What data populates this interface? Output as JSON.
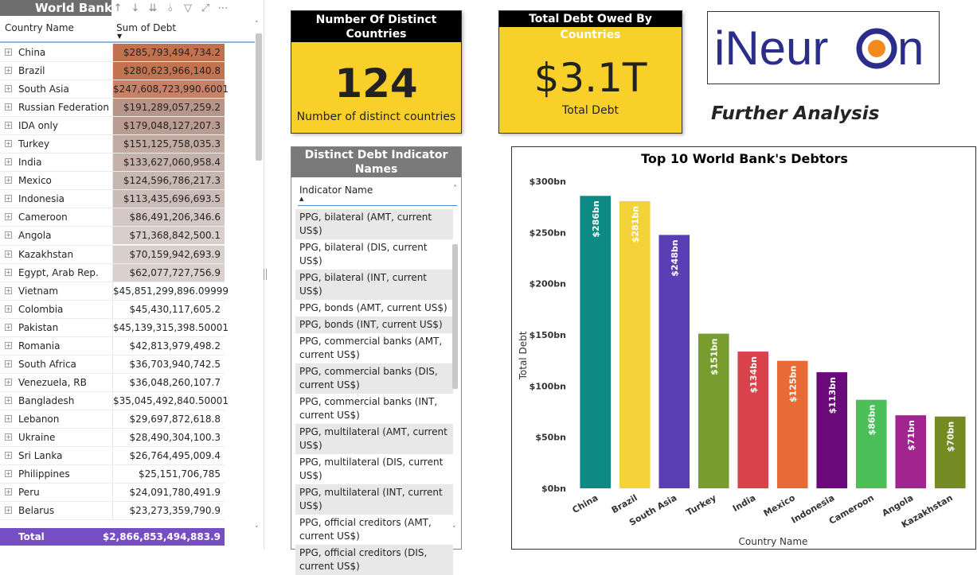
{
  "matrix": {
    "title": "World Bank",
    "toolbar_icons": [
      "sort-up-icon",
      "sort-down-icon",
      "expand-all-icon",
      "drill-icon",
      "filter-icon",
      "focus-icon",
      "more-icon"
    ],
    "header_country": "Country Name",
    "header_debt": "Sum of Debt",
    "rows": [
      {
        "name": "China",
        "value": "$285,793,494,734.2",
        "color": "#c2714f"
      },
      {
        "name": "Brazil",
        "value": "$280,623,966,140.8",
        "color": "#c3734f"
      },
      {
        "name": "South Asia",
        "value": "$247,608,723,990.6001",
        "color": "#c68166"
      },
      {
        "name": "Russian Federation",
        "value": "$191,289,057,259.2",
        "color": "#b8958a"
      },
      {
        "name": "IDA only",
        "value": "$179,048,127,207.3",
        "color": "#b99c92"
      },
      {
        "name": "Turkey",
        "value": "$151,125,758,035.3",
        "color": "#c0aaa2"
      },
      {
        "name": "India",
        "value": "$133,627,060,958.4",
        "color": "#c3b1aa"
      },
      {
        "name": "Mexico",
        "value": "$124,596,786,217.3",
        "color": "#c7b7b1"
      },
      {
        "name": "Indonesia",
        "value": "$113,435,696,693.5",
        "color": "#cbbcb7"
      },
      {
        "name": "Cameroon",
        "value": "$86,491,206,346.6",
        "color": "#d4c8c4"
      },
      {
        "name": "Angola",
        "value": "$71,368,842,500.1",
        "color": "#d8ceca"
      },
      {
        "name": "Kazakhstan",
        "value": "$70,159,942,693.9",
        "color": "#d9cfcb"
      },
      {
        "name": "Egypt, Arab Rep.",
        "value": "$62,077,727,756.9",
        "color": "#dad1ce"
      },
      {
        "name": "Vietnam",
        "value": "$45,851,299,896.09999",
        "color": "#ffffff"
      },
      {
        "name": "Colombia",
        "value": "$45,430,117,605.2",
        "color": "#ffffff"
      },
      {
        "name": "Pakistan",
        "value": "$45,139,315,398.50001",
        "color": "#ffffff"
      },
      {
        "name": "Romania",
        "value": "$42,813,979,498.2",
        "color": "#ffffff"
      },
      {
        "name": "South Africa",
        "value": "$36,703,940,742.5",
        "color": "#ffffff"
      },
      {
        "name": "Venezuela, RB",
        "value": "$36,048,260,107.7",
        "color": "#ffffff"
      },
      {
        "name": "Bangladesh",
        "value": "$35,045,492,840.50001",
        "color": "#ffffff"
      },
      {
        "name": "Lebanon",
        "value": "$29,697,872,618.8",
        "color": "#ffffff"
      },
      {
        "name": "Ukraine",
        "value": "$28,490,304,100.3",
        "color": "#ffffff"
      },
      {
        "name": "Sri Lanka",
        "value": "$26,764,495,009.4",
        "color": "#ffffff"
      },
      {
        "name": "Philippines",
        "value": "$25,151,706,785",
        "color": "#ffffff"
      },
      {
        "name": "Peru",
        "value": "$24,091,780,491.9",
        "color": "#ffffff"
      },
      {
        "name": "Belarus",
        "value": "$23,273,359,790.9",
        "color": "#ffffff"
      }
    ],
    "total_label": "Total",
    "total_value": "$2,866,853,494,883.9"
  },
  "card_countries": {
    "title": "Number Of Distinct Countries",
    "value": "124",
    "subtitle": "Number of distinct countries"
  },
  "card_debt": {
    "title": "Total Debt Owed By Countries",
    "value": "$3.1T",
    "subtitle": "Total Debt"
  },
  "logo": {
    "text": "iNeuron"
  },
  "further_analysis": "Further Analysis",
  "slicer": {
    "title": "Distinct Debt Indicator Names",
    "header": "Indicator Name",
    "items": [
      "PPG, bilateral (AMT, current US$)",
      "PPG, bilateral (DIS, current US$)",
      "PPG, bilateral (INT, current US$)",
      "PPG, bonds (AMT, current US$)",
      "PPG, bonds (INT, current US$)",
      "PPG, commercial banks (AMT, current US$)",
      "PPG, commercial banks (DIS, current US$)",
      "PPG, commercial banks (INT, current US$)",
      "PPG, multilateral (AMT, current US$)",
      "PPG, multilateral (DIS, current US$)",
      "PPG, multilateral (INT, current US$)",
      "PPG, official creditors (AMT, current US$)",
      "PPG, official creditors (DIS, current US$)"
    ]
  },
  "chart_data": {
    "type": "bar",
    "title": "Top 10 World Bank's Debtors",
    "xlabel": "Country Name",
    "ylabel": "Total Debt",
    "categories": [
      "China",
      "Brazil",
      "South Asia",
      "Turkey",
      "India",
      "Mexico",
      "Indonesia",
      "Cameroon",
      "Angola",
      "Kazakhstan"
    ],
    "values": [
      285.79,
      280.62,
      247.61,
      151.13,
      133.63,
      124.6,
      113.44,
      86.49,
      71.37,
      70.16
    ],
    "data_labels": [
      "$286bn",
      "$281bn",
      "$248bn",
      "$151bn",
      "$134bn",
      "$125bn",
      "$113bn",
      "$86bn",
      "$71bn",
      "$70bn"
    ],
    "colors": [
      "#0e8a84",
      "#f4d23a",
      "#5a3eb5",
      "#789c2e",
      "#d9424b",
      "#e86a34",
      "#6a0a7a",
      "#4cbf5a",
      "#a2248e",
      "#748a22"
    ],
    "ylim": [
      0,
      300
    ],
    "yticks": [
      0,
      50,
      100,
      150,
      200,
      250,
      300
    ],
    "ytick_labels": [
      "$0bn",
      "$50bn",
      "$100bn",
      "$150bn",
      "$200bn",
      "$250bn",
      "$300bn"
    ],
    "grid": false,
    "unit": "bn USD"
  }
}
